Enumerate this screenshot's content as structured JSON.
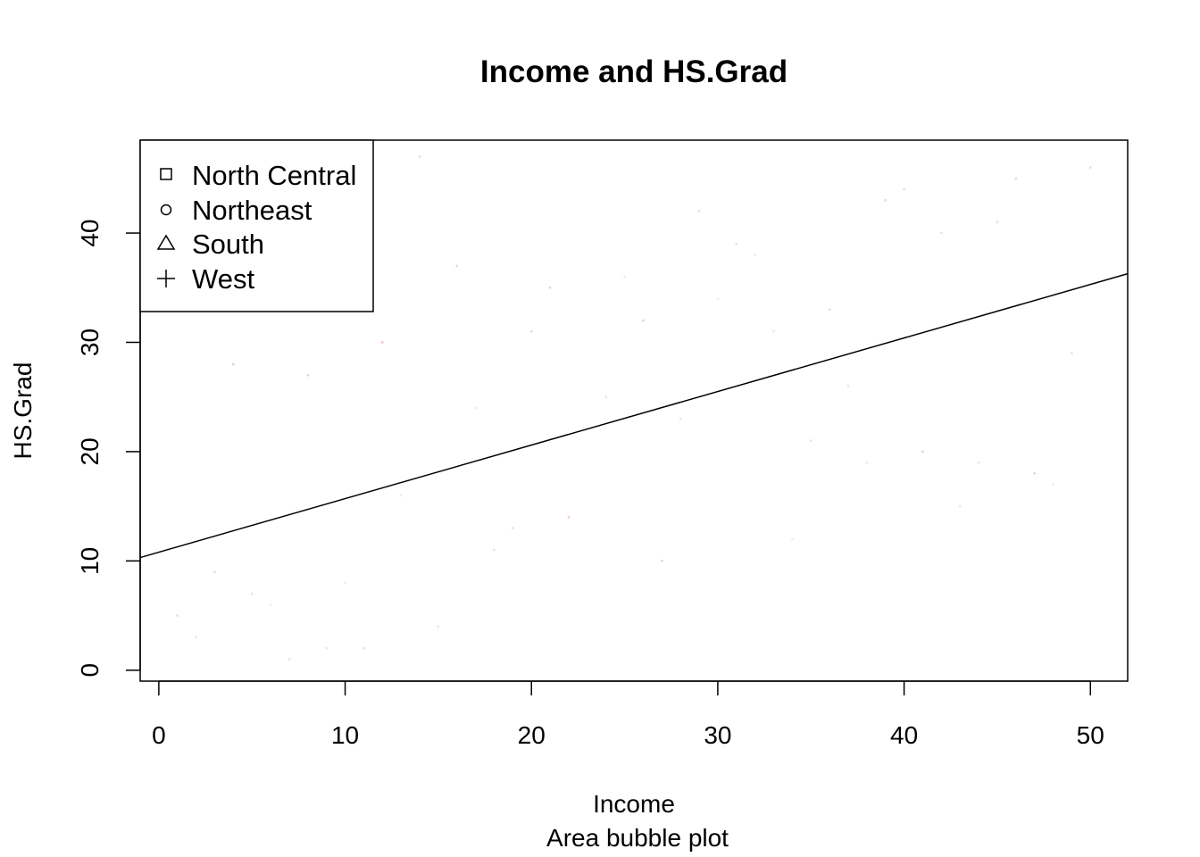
{
  "chart_data": {
    "type": "scatter",
    "title": "Income and HS.Grad",
    "xlabel": "Income",
    "sub": "Area bubble plot",
    "ylabel": "HS.Grad",
    "xlim": [
      -1,
      52
    ],
    "ylim": [
      -1,
      48.5
    ],
    "xticks": [
      0,
      10,
      20,
      30,
      40,
      50
    ],
    "yticks": [
      0,
      10,
      20,
      30,
      40
    ],
    "grid": false,
    "legend": {
      "position": "top-left",
      "entries": [
        {
          "label": "North Central",
          "shape": "square"
        },
        {
          "label": "Northeast",
          "shape": "circle"
        },
        {
          "label": "South",
          "shape": "triangle"
        },
        {
          "label": "West",
          "shape": "plus"
        }
      ]
    },
    "regression_line": {
      "intercept": 10.8,
      "slope": 0.49
    },
    "points": [
      {
        "x": 1,
        "y": 5,
        "color": "#e0e0e0"
      },
      {
        "x": 2,
        "y": 3,
        "color": "#e8e8e8"
      },
      {
        "x": 3,
        "y": 9,
        "color": "#f4d8d8"
      },
      {
        "x": 4,
        "y": 28,
        "color": "#d0d8e8"
      },
      {
        "x": 5,
        "y": 7,
        "color": "#e6e6e6"
      },
      {
        "x": 6,
        "y": 6,
        "color": "#eeeeee"
      },
      {
        "x": 7,
        "y": 1,
        "color": "#e4e4e4"
      },
      {
        "x": 8,
        "y": 27,
        "color": "#d8e0e8"
      },
      {
        "x": 9,
        "y": 2,
        "color": "#e8e8e8"
      },
      {
        "x": 10,
        "y": 8,
        "color": "#eeeeee"
      },
      {
        "x": 11,
        "y": 2,
        "color": "#e2e2e2"
      },
      {
        "x": 12,
        "y": 30,
        "color": "#f0c8c8"
      },
      {
        "x": 13,
        "y": 16,
        "color": "#f2eed8"
      },
      {
        "x": 14,
        "y": 47,
        "color": "#dcdcdc"
      },
      {
        "x": 15,
        "y": 4,
        "color": "#e6e6e6"
      },
      {
        "x": 16,
        "y": 37,
        "color": "#d8d8f0"
      },
      {
        "x": 17,
        "y": 24,
        "color": "#e4ece4"
      },
      {
        "x": 18,
        "y": 11,
        "color": "#e8e8e8"
      },
      {
        "x": 19,
        "y": 13,
        "color": "#dde8ee"
      },
      {
        "x": 20,
        "y": 31,
        "color": "#f0d0d0"
      },
      {
        "x": 21,
        "y": 35,
        "color": "#dcdcdc"
      },
      {
        "x": 22,
        "y": 14,
        "color": "#f2c8c8"
      },
      {
        "x": 24,
        "y": 25,
        "color": "#e8e8e8"
      },
      {
        "x": 25,
        "y": 36,
        "color": "#eaeaea"
      },
      {
        "x": 26,
        "y": 32,
        "color": "#d8d8e8"
      },
      {
        "x": 27,
        "y": 10,
        "color": "#dcdcdc"
      },
      {
        "x": 28,
        "y": 23,
        "color": "#e8e8e8"
      },
      {
        "x": 29,
        "y": 42,
        "color": "#e0e0f0"
      },
      {
        "x": 30,
        "y": 34,
        "color": "#eeeeee"
      },
      {
        "x": 31,
        "y": 39,
        "color": "#e2e2e2"
      },
      {
        "x": 32,
        "y": 38,
        "color": "#e8eef0"
      },
      {
        "x": 33,
        "y": 31,
        "color": "#e8e8e8"
      },
      {
        "x": 34,
        "y": 12,
        "color": "#eeeeee"
      },
      {
        "x": 35,
        "y": 21,
        "color": "#dfeadf"
      },
      {
        "x": 36,
        "y": 33,
        "color": "#f0dada"
      },
      {
        "x": 37,
        "y": 26,
        "color": "#e8e8e8"
      },
      {
        "x": 38,
        "y": 19,
        "color": "#eaeaea"
      },
      {
        "x": 39,
        "y": 43,
        "color": "#dcdcdc"
      },
      {
        "x": 40,
        "y": 44,
        "color": "#e2e2e2"
      },
      {
        "x": 41,
        "y": 20,
        "color": "#d8d8d8"
      },
      {
        "x": 42,
        "y": 40,
        "color": "#e4e4e4"
      },
      {
        "x": 43,
        "y": 15,
        "color": "#eaeaea"
      },
      {
        "x": 44,
        "y": 19,
        "color": "#e6e6e6"
      },
      {
        "x": 45,
        "y": 41,
        "color": "#e0e0e0"
      },
      {
        "x": 46,
        "y": 45,
        "color": "#dcdcdc"
      },
      {
        "x": 47,
        "y": 18,
        "color": "#d8d8d8"
      },
      {
        "x": 48,
        "y": 17,
        "color": "#eeeeee"
      },
      {
        "x": 49,
        "y": 29,
        "color": "#e4e4e4"
      },
      {
        "x": 50,
        "y": 46,
        "color": "#e0e0e0"
      }
    ]
  }
}
